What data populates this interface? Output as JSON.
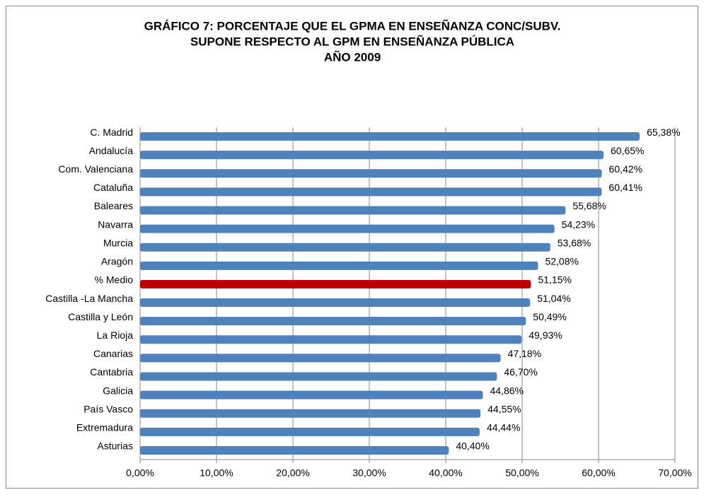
{
  "chart_data": {
    "type": "bar",
    "orientation": "horizontal",
    "title": [
      "GRÁFICO 7: PORCENTAJE QUE EL GPMA EN ENSEÑANZA CONC/SUBV.",
      "SUPONE RESPECTO AL GPM EN ENSEÑANZA PÚBLICA",
      "AÑO 2009"
    ],
    "categories": [
      "C. Madrid",
      "Andalucía",
      "Com. Valenciana",
      "Cataluña",
      "Baleares",
      "Navarra",
      "Murcia",
      "Aragón",
      "% Medio",
      "Castilla -La Mancha",
      "Castilla y León",
      "La Rioja",
      "Canarias",
      "Cantabria",
      "Galicia",
      "País Vasco",
      "Extremadura",
      "Asturias"
    ],
    "values": [
      65.38,
      60.65,
      60.42,
      60.41,
      55.68,
      54.23,
      53.68,
      52.08,
      51.15,
      51.04,
      50.49,
      49.93,
      47.18,
      46.7,
      44.86,
      44.55,
      44.44,
      40.4
    ],
    "value_labels": [
      "65,38%",
      "60,65%",
      "60,42%",
      "60,41%",
      "55,68%",
      "54,23%",
      "53,68%",
      "52,08%",
      "51,15%",
      "51,04%",
      "50,49%",
      "49,93%",
      "47,18%",
      "46,70%",
      "44,86%",
      "44,55%",
      "44,44%",
      "40,40%"
    ],
    "colors": [
      "#4f81bd",
      "#4f81bd",
      "#4f81bd",
      "#4f81bd",
      "#4f81bd",
      "#4f81bd",
      "#4f81bd",
      "#4f81bd",
      "#c00000",
      "#4f81bd",
      "#4f81bd",
      "#4f81bd",
      "#4f81bd",
      "#4f81bd",
      "#4f81bd",
      "#4f81bd",
      "#4f81bd",
      "#4f81bd"
    ],
    "xlim": [
      0,
      70
    ],
    "xticks": [
      {
        "value": 0,
        "label": "0,00%"
      },
      {
        "value": 10,
        "label": "10,00%"
      },
      {
        "value": 20,
        "label": "20,00%"
      },
      {
        "value": 30,
        "label": "30,00%"
      },
      {
        "value": 40,
        "label": "40,00%"
      },
      {
        "value": 50,
        "label": "50,00%"
      },
      {
        "value": 60,
        "label": "60,00%"
      },
      {
        "value": 70,
        "label": "70,00%"
      }
    ],
    "grid": true
  }
}
